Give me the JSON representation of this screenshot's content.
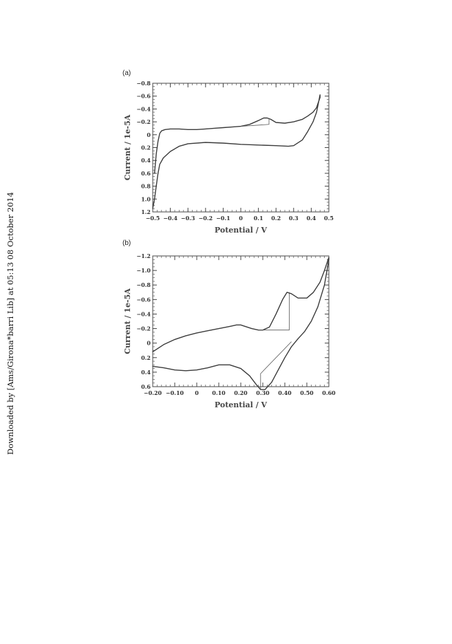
{
  "watermark": "Downloaded by [Ams/Girona*barri Lib] at 05:13 08 October 2014",
  "chart_data": [
    {
      "type": "line",
      "panel_label": "(a)",
      "xlabel": "Potential / V",
      "ylabel": "Current / 1e-5A",
      "xlim": [
        -0.5,
        0.5
      ],
      "ylim": [
        -0.8,
        1.2
      ],
      "y_inverted": true,
      "xticks": [
        -0.5,
        -0.4,
        -0.3,
        -0.2,
        -0.1,
        0,
        0.1,
        0.2,
        0.3,
        0.4,
        0.5
      ],
      "xtick_labels": [
        "−0.5",
        "−0.4",
        "−0.3",
        "−0.2",
        "−0.1",
        "0",
        "0.1",
        "0.2",
        "0.3",
        "0.4",
        "0.5"
      ],
      "yticks": [
        -0.8,
        -0.6,
        -0.4,
        -0.2,
        0,
        0.2,
        0.4,
        0.6,
        0.8,
        1.0,
        1.2
      ],
      "ytick_labels": [
        "−0.8",
        "−0.6",
        "−0.4",
        "−0.2",
        "0",
        "0.2",
        "0.4",
        "0.6",
        "0.8",
        "1.0",
        "1.2"
      ],
      "series": [
        {
          "x": [
            -0.49,
            -0.48,
            -0.47,
            -0.46,
            -0.45,
            -0.43,
            -0.4,
            -0.35,
            -0.3,
            -0.25,
            -0.2,
            -0.15,
            -0.1,
            -0.05,
            0,
            0.05,
            0.1,
            0.13,
            0.15,
            0.17,
            0.2,
            0.25,
            0.3,
            0.35,
            0.38,
            0.41,
            0.43,
            0.44,
            0.45,
            0.45,
            0.44,
            0.43,
            0.41,
            0.38,
            0.35,
            0.3,
            0.27,
            0.2,
            0.1,
            0,
            -0.1,
            -0.2,
            -0.3,
            -0.35,
            -0.4,
            -0.44,
            -0.46,
            -0.47,
            -0.48,
            -0.49,
            -0.5
          ],
          "y": [
            0.6,
            0.3,
            0.1,
            -0.02,
            -0.06,
            -0.08,
            -0.09,
            -0.09,
            -0.08,
            -0.08,
            -0.09,
            -0.1,
            -0.11,
            -0.12,
            -0.13,
            -0.16,
            -0.22,
            -0.26,
            -0.26,
            -0.24,
            -0.19,
            -0.18,
            -0.2,
            -0.24,
            -0.29,
            -0.35,
            -0.42,
            -0.5,
            -0.58,
            -0.62,
            -0.48,
            -0.35,
            -0.2,
            -0.05,
            0.08,
            0.17,
            0.18,
            0.17,
            0.16,
            0.15,
            0.13,
            0.12,
            0.14,
            0.18,
            0.26,
            0.36,
            0.46,
            0.6,
            0.8,
            1.0,
            1.15
          ]
        }
      ],
      "annotation_lines": [
        {
          "x": [
            0,
            0.16,
            0.16
          ],
          "y": [
            -0.13,
            -0.16,
            -0.26
          ]
        }
      ]
    },
    {
      "type": "line",
      "panel_label": "(b)",
      "xlabel": "Potential / V",
      "ylabel": "Current / 1e-5A",
      "xlim": [
        -0.2,
        0.6
      ],
      "ylim": [
        -1.2,
        0.6
      ],
      "y_inverted": true,
      "xticks": [
        -0.2,
        -0.1,
        0,
        0.1,
        0.2,
        0.3,
        0.4,
        0.5,
        0.6
      ],
      "xtick_labels": [
        "−0.20",
        "−0.10",
        "0",
        "0.10",
        "0.20",
        "0.30",
        "0.40",
        "0.50",
        "0.60"
      ],
      "yticks": [
        -1.2,
        -1.0,
        -0.8,
        -0.6,
        -0.4,
        -0.2,
        0,
        0.2,
        0.4,
        0.6
      ],
      "ytick_labels": [
        "−1.2",
        "−1.0",
        "−0.8",
        "−0.6",
        "−0.4",
        "−0.2",
        "0",
        "0.2",
        "0.4",
        "0.6"
      ],
      "series": [
        {
          "x": [
            -0.2,
            -0.15,
            -0.1,
            -0.05,
            0,
            0.05,
            0.1,
            0.15,
            0.18,
            0.2,
            0.22,
            0.25,
            0.28,
            0.3,
            0.33,
            0.36,
            0.39,
            0.41,
            0.43,
            0.46,
            0.5,
            0.53,
            0.56,
            0.58,
            0.6,
            0.6,
            0.58,
            0.55,
            0.52,
            0.49,
            0.46,
            0.43,
            0.4,
            0.37,
            0.34,
            0.31,
            0.29,
            0.27,
            0.24,
            0.2,
            0.15,
            0.1,
            0.05,
            0,
            -0.05,
            -0.1,
            -0.15,
            -0.2
          ],
          "y": [
            0.12,
            0.02,
            -0.05,
            -0.1,
            -0.14,
            -0.17,
            -0.2,
            -0.23,
            -0.25,
            -0.25,
            -0.23,
            -0.2,
            -0.18,
            -0.18,
            -0.22,
            -0.4,
            -0.6,
            -0.7,
            -0.68,
            -0.62,
            -0.62,
            -0.7,
            -0.84,
            -1.0,
            -1.18,
            -1.15,
            -0.8,
            -0.5,
            -0.3,
            -0.16,
            -0.06,
            0.05,
            0.2,
            0.37,
            0.54,
            0.64,
            0.64,
            0.57,
            0.45,
            0.35,
            0.3,
            0.3,
            0.34,
            0.37,
            0.38,
            0.37,
            0.34,
            0.32
          ]
        }
      ],
      "annotation_lines": [
        {
          "x": [
            0.28,
            0.42,
            0.42
          ],
          "y": [
            -0.18,
            -0.18,
            -0.7
          ]
        },
        {
          "x": [
            0.29,
            0.29,
            0.43
          ],
          "y": [
            0.64,
            0.42,
            -0.02
          ]
        }
      ]
    }
  ]
}
